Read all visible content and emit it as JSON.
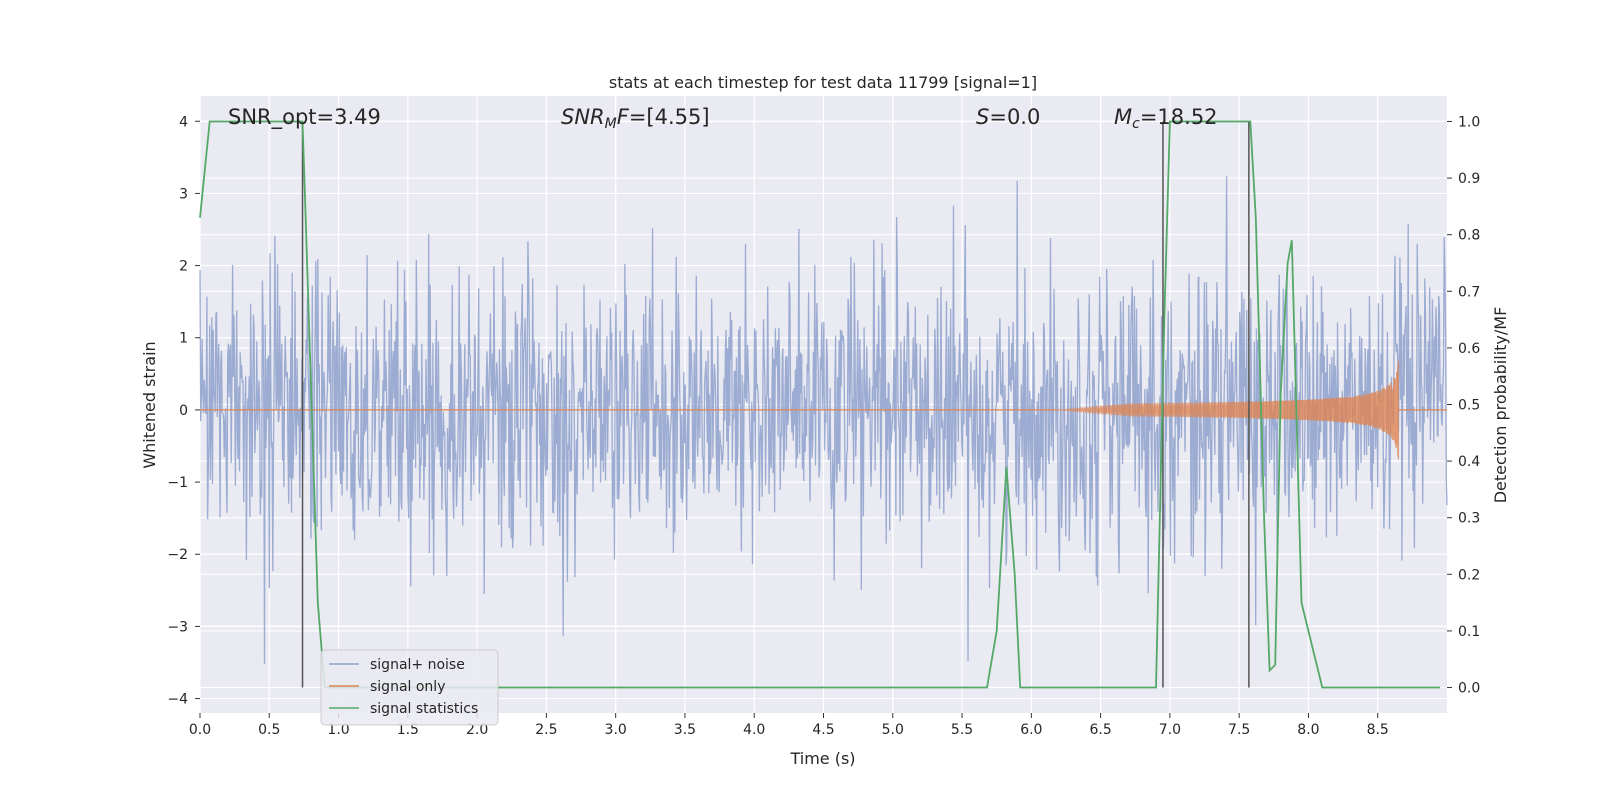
{
  "chart_data": {
    "type": "line",
    "title": "stats at each timestep for test data 11799 [signal=1]",
    "xlabel": "Time (s)",
    "ylabel": "Whitened strain",
    "ylabel_right": "Detection probability/MF",
    "xlim": [
      0.0,
      9.0
    ],
    "ylim": [
      -4.2,
      4.35
    ],
    "ylim_right": [
      -0.045,
      1.045
    ],
    "x_ticks": [
      "0.0",
      "0.5",
      "1.0",
      "1.5",
      "2.0",
      "2.5",
      "3.0",
      "3.5",
      "4.0",
      "4.5",
      "5.0",
      "5.5",
      "6.0",
      "6.5",
      "7.0",
      "7.5",
      "8.0",
      "8.5"
    ],
    "y_ticks": [
      "−4",
      "−3",
      "−2",
      "−1",
      "0",
      "1",
      "2",
      "3",
      "4"
    ],
    "y_ticks_right": [
      "0.0",
      "0.1",
      "0.2",
      "0.3",
      "0.4",
      "0.5",
      "0.6",
      "0.7",
      "0.8",
      "0.9",
      "1.0"
    ],
    "grid": true,
    "legend_placement": "lower-left",
    "colors": {
      "noise": "#8da0cb",
      "signal": "#dd8452",
      "stats": "#55a868",
      "vline": "#555555",
      "background": "#eaeaf2"
    },
    "annotations": {
      "snr_opt": "SNR_opt=3.49",
      "snr_mf": "=[4.55]",
      "s": "=0.0",
      "mc": "=18.52"
    },
    "series": [
      {
        "name": "signal+ noise",
        "description_range": "Gaussian-like whitened noise, amplitude roughly ±2 with peaks to ±3.5",
        "x_range": [
          0.0,
          9.0
        ]
      },
      {
        "name": "signal only",
        "description_range": "chirp, near zero until ~6.5 s, grows to ±0.7 at 8.65 s then ends",
        "x_range": [
          0.0,
          8.65
        ],
        "peak_amplitude": 0.7,
        "end_time": 8.65
      },
      {
        "name": "signal statistics",
        "axis": "right",
        "x": [
          0.0,
          0.07,
          0.1,
          0.74,
          0.76,
          0.85,
          0.9,
          5.35,
          5.68,
          5.75,
          5.82,
          5.88,
          5.92,
          6.9,
          6.96,
          7.0,
          7.58,
          7.62,
          7.68,
          7.72,
          7.76,
          7.8,
          7.85,
          7.88,
          7.95,
          8.0,
          8.1,
          8.95
        ],
        "values": [
          0.83,
          1.0,
          1.0,
          1.0,
          0.85,
          0.15,
          0.0,
          0.0,
          0.0,
          0.1,
          0.39,
          0.2,
          0.0,
          0.0,
          0.65,
          1.0,
          1.0,
          0.83,
          0.3,
          0.03,
          0.04,
          0.52,
          0.75,
          0.79,
          0.15,
          0.1,
          0.0,
          0.0
        ]
      }
    ],
    "vlines": [
      0.74,
      6.95,
      7.57
    ]
  }
}
